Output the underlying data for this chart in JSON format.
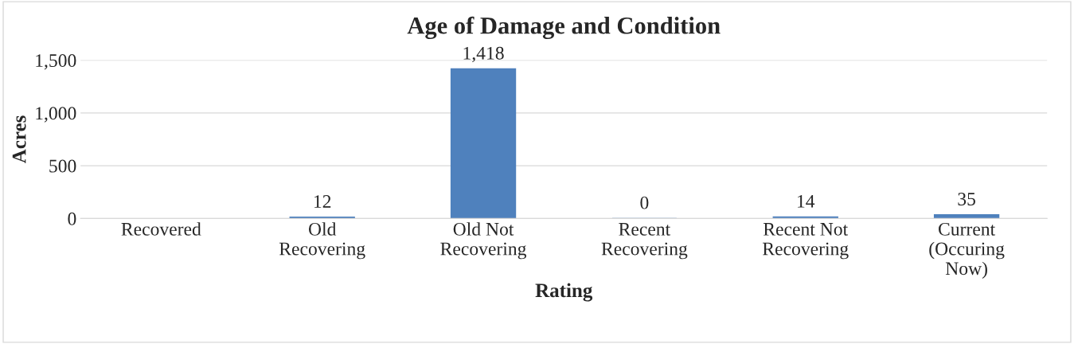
{
  "chart_data": {
    "type": "bar",
    "title": "Age of Damage and Condition",
    "xlabel": "Rating",
    "ylabel": "Acres",
    "categories": [
      "Recovered",
      "Old Recovering",
      "Old Not Recovering",
      "Recent Recovering",
      "Recent Not Recovering",
      "Current (Occuring Now)"
    ],
    "values": [
      null,
      12,
      1418,
      0,
      14,
      35
    ],
    "value_labels": [
      null,
      "12",
      "1,418",
      "0",
      "14",
      "35"
    ],
    "color": "#4f81bd",
    "ylim": [
      0,
      1500
    ],
    "yticks": [
      0,
      500,
      {
        "value": 1000,
        "label": "1,000"
      },
      {
        "value": 1500,
        "label": "1,500"
      }
    ],
    "grid": "y"
  }
}
